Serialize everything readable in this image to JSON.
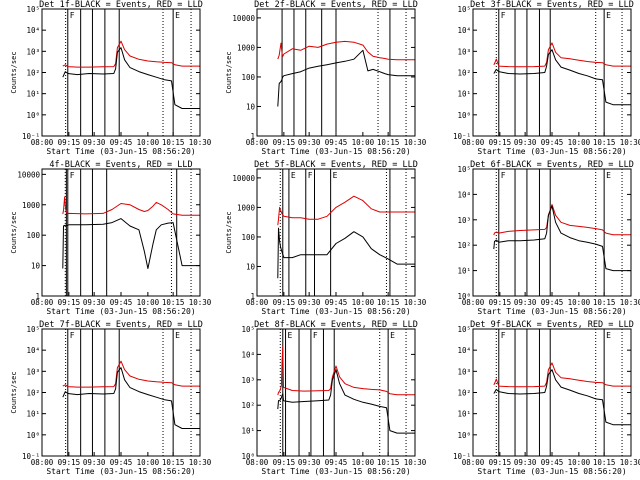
{
  "colors": {
    "events": "#000000",
    "lld": "#dd0000",
    "background": "#ffffff"
  },
  "time_axis": {
    "tick_labels": [
      "08:00",
      "09:15",
      "09:30",
      "09:45",
      "10:00",
      "10:15",
      "10:30"
    ],
    "xlabel": "Start Time (03-Jun-15 08:56:20)"
  },
  "chart_data": [
    {
      "type": "line",
      "title": "Det 1f-BLACK = Events, RED = LLD",
      "ylabel": "Counts/sec",
      "yscale": "log",
      "ylim": [
        0.1,
        100000
      ],
      "ytick_labels": [
        "10⁻¹",
        "10⁰",
        "10¹",
        "10²",
        "10³",
        "10⁴",
        "10⁵"
      ],
      "x": [
        "08:58",
        "09:05",
        "09:12",
        "09:20",
        "09:27",
        "09:35",
        "09:41",
        "09:42",
        "09:43",
        "09:45",
        "09:47",
        "09:50",
        "09:55",
        "10:00",
        "10:05",
        "10:10",
        "10:14",
        "10:16",
        "10:20",
        "10:30"
      ],
      "series": [
        {
          "color": "#dd0000",
          "values": [
            200,
            230,
            190,
            180,
            180,
            185,
            190,
            260,
            1500,
            3000,
            1200,
            600,
            420,
            350,
            320,
            300,
            290,
            230,
            200,
            200
          ]
        },
        {
          "color": "#000000",
          "values": [
            60,
            110,
            90,
            80,
            90,
            85,
            90,
            150,
            900,
            1500,
            400,
            170,
            110,
            80,
            60,
            45,
            40,
            3,
            2,
            2
          ]
        }
      ],
      "vlines_solid": [
        "09:12",
        "09:22",
        "09:29",
        "09:36",
        "09:44",
        "10:15"
      ],
      "vlines_dotted": [
        "09:06",
        "10:09",
        "10:25"
      ],
      "markers": [
        {
          "text": "F",
          "x": "09:12"
        },
        {
          "text": "E",
          "x": "10:15"
        }
      ]
    },
    {
      "type": "line",
      "title": "Det 2f-BLACK = Events, RED = LLD",
      "ylabel": "Counts/sec",
      "yscale": "log",
      "ylim": [
        1,
        20000
      ],
      "ytick_labels": [
        "1",
        "10",
        "100",
        "1000",
        "10000"
      ],
      "x": [
        "08:58",
        "09:02",
        "09:07",
        "09:10",
        "09:12",
        "09:15",
        "09:20",
        "09:25",
        "09:30",
        "09:35",
        "09:40",
        "09:45",
        "09:50",
        "09:55",
        "10:00",
        "10:03",
        "10:06",
        "10:10",
        "10:13",
        "10:15",
        "10:20",
        "10:30"
      ],
      "series": [
        {
          "color": "#dd0000",
          "values": [
            400,
            550,
            1400,
            600,
            500,
            600,
            900,
            800,
            1100,
            1000,
            1300,
            1500,
            1600,
            1500,
            1200,
            700,
            500,
            450,
            420,
            400,
            380,
            380
          ]
        },
        {
          "color": "#000000",
          "values": [
            10,
            60,
            70,
            85,
            100,
            110,
            130,
            150,
            200,
            230,
            260,
            300,
            340,
            400,
            800,
            160,
            180,
            150,
            130,
            120,
            110,
            110
          ]
        }
      ],
      "vlines_solid": [
        "09:10",
        "09:21",
        "09:28",
        "09:37",
        "09:45",
        "10:16"
      ],
      "vlines_dotted": [
        "10:09",
        "10:25"
      ],
      "markers": []
    },
    {
      "type": "line",
      "title": "Det 3f-BLACK = Events, RED = LLD",
      "ylabel": "",
      "yscale": "log",
      "ylim": [
        0.1,
        100000
      ],
      "ytick_labels": [
        "10⁻¹",
        "10⁰",
        "10¹",
        "10²",
        "10³",
        "10⁴",
        "10⁵"
      ],
      "x": [
        "08:58",
        "09:00",
        "09:05",
        "09:12",
        "09:20",
        "09:27",
        "09:35",
        "09:41",
        "09:42",
        "09:43",
        "09:45",
        "09:47",
        "09:50",
        "09:55",
        "10:00",
        "10:05",
        "10:10",
        "10:14",
        "10:16",
        "10:20",
        "10:30"
      ],
      "series": [
        {
          "color": "#dd0000",
          "values": [
            230,
            260,
            430,
            200,
            190,
            185,
            190,
            200,
            300,
            1200,
            2500,
            900,
            500,
            450,
            380,
            330,
            300,
            290,
            230,
            200,
            200
          ]
        },
        {
          "color": "#000000",
          "values": [
            90,
            100,
            140,
            110,
            90,
            85,
            90,
            100,
            200,
            700,
            1200,
            400,
            180,
            130,
            90,
            70,
            50,
            45,
            4,
            3,
            3
          ]
        }
      ],
      "vlines_solid": [
        "09:12",
        "09:24",
        "09:31",
        "09:38",
        "09:44",
        "10:15"
      ],
      "vlines_dotted": [
        "09:05",
        "10:10",
        "10:25"
      ],
      "markers": [
        {
          "text": "F",
          "x": "09:12"
        },
        {
          "text": "E",
          "x": "10:15"
        }
      ]
    },
    {
      "type": "line",
      "title": "4f-BLACK = Events, RED = LLD",
      "ylabel": "Counts/sec",
      "yscale": "log",
      "ylim": [
        1,
        15000
      ],
      "ytick_labels": [
        "1",
        "10",
        "100",
        "1000",
        "10000"
      ],
      "x": [
        "08:58",
        "09:00",
        "09:03",
        "09:06",
        "09:10",
        "09:15",
        "09:25",
        "09:35",
        "09:40",
        "09:45",
        "09:50",
        "09:55",
        "09:58",
        "10:00",
        "10:03",
        "10:05",
        "10:08",
        "10:12",
        "10:15",
        "10:20",
        "10:30"
      ],
      "series": [
        {
          "color": "#dd0000",
          "values": [
            500,
            650,
            1800,
            700,
            500,
            520,
            500,
            520,
            700,
            1100,
            1000,
            700,
            600,
            650,
            900,
            1200,
            1000,
            700,
            500,
            450,
            450
          ]
        },
        {
          "color": "#000000",
          "values": [
            8,
            200,
            210,
            210,
            210,
            220,
            220,
            230,
            260,
            350,
            200,
            150,
            30,
            8,
            50,
            150,
            220,
            250,
            260,
            10,
            10
          ]
        }
      ],
      "vlines_solid": [
        "09:08",
        "09:12",
        "09:22",
        "09:29",
        "09:37",
        "10:17"
      ],
      "vlines_dotted": [
        "09:05",
        "10:14",
        "10:25"
      ],
      "markers": [
        {
          "text": "F",
          "x": "09:12"
        }
      ]
    },
    {
      "type": "line",
      "title": "Det 5f-BLACK = Events, RED = LLD",
      "ylabel": "Counts/sec",
      "yscale": "log",
      "ylim": [
        1,
        20000
      ],
      "ytick_labels": [
        "1",
        "10",
        "100",
        "1000",
        "10000"
      ],
      "x": [
        "08:58",
        "09:00",
        "09:03",
        "09:06",
        "09:10",
        "09:15",
        "09:20",
        "09:25",
        "09:30",
        "09:35",
        "09:40",
        "09:45",
        "09:50",
        "09:55",
        "10:00",
        "10:05",
        "10:10",
        "10:15",
        "10:20",
        "10:30"
      ],
      "series": [
        {
          "color": "#dd0000",
          "values": [
            250,
            400,
            1000,
            800,
            600,
            500,
            450,
            450,
            400,
            400,
            500,
            1000,
            1500,
            2400,
            1700,
            900,
            700,
            700,
            700,
            700
          ]
        },
        {
          "color": "#000000",
          "values": [
            4,
            200,
            70,
            45,
            30,
            20,
            20,
            25,
            25,
            25,
            25,
            60,
            90,
            150,
            100,
            40,
            25,
            18,
            12,
            12
          ]
        }
      ],
      "vlines_solid": [
        "09:12",
        "09:18",
        "09:28",
        "09:33",
        "09:42",
        "10:16"
      ],
      "vlines_dotted": [
        "09:05",
        "10:14",
        "10:25"
      ],
      "markers": [
        {
          "text": "E",
          "x": "09:18"
        },
        {
          "text": "F",
          "x": "09:28"
        },
        {
          "text": "E",
          "x": "09:42"
        }
      ]
    },
    {
      "type": "line",
      "title": "Det 6f-BLACK = Events, RED = LLD",
      "ylabel": "",
      "yscale": "log",
      "ylim": [
        1,
        100000
      ],
      "ytick_labels": [
        "10⁰",
        "10¹",
        "10²",
        "10³",
        "10⁴",
        "10⁵"
      ],
      "x": [
        "08:58",
        "09:00",
        "09:05",
        "09:12",
        "09:20",
        "09:27",
        "09:35",
        "09:41",
        "09:42",
        "09:43",
        "09:45",
        "09:47",
        "09:50",
        "09:55",
        "10:00",
        "10:05",
        "10:10",
        "10:14",
        "10:16",
        "10:20",
        "10:30"
      ],
      "series": [
        {
          "color": "#dd0000",
          "values": [
            250,
            300,
            330,
            300,
            350,
            380,
            400,
            420,
            500,
            1500,
            4000,
            1500,
            800,
            600,
            550,
            500,
            450,
            400,
            300,
            260,
            260
          ]
        },
        {
          "color": "#000000",
          "values": [
            70,
            140,
            160,
            130,
            150,
            150,
            160,
            180,
            300,
            1500,
            3500,
            800,
            300,
            200,
            150,
            130,
            110,
            90,
            12,
            10,
            10
          ]
        }
      ],
      "vlines_solid": [
        "09:12",
        "09:24",
        "09:31",
        "09:38",
        "09:44",
        "10:15"
      ],
      "vlines_dotted": [
        "09:05",
        "10:10",
        "10:25"
      ],
      "markers": [
        {
          "text": "F",
          "x": "09:12"
        },
        {
          "text": "E",
          "x": "10:15"
        }
      ]
    },
    {
      "type": "line",
      "title": "Det 7f-BLACK = Events, RED = LLD",
      "ylabel": "Counts/sec",
      "yscale": "log",
      "ylim": [
        0.1,
        100000
      ],
      "ytick_labels": [
        "10⁻¹",
        "10⁰",
        "10¹",
        "10²",
        "10³",
        "10⁴",
        "10⁵"
      ],
      "x": [
        "08:58",
        "09:05",
        "09:12",
        "09:20",
        "09:27",
        "09:35",
        "09:41",
        "09:42",
        "09:43",
        "09:45",
        "09:47",
        "09:50",
        "09:55",
        "10:00",
        "10:05",
        "10:10",
        "10:14",
        "10:16",
        "10:20",
        "10:30"
      ],
      "series": [
        {
          "color": "#dd0000",
          "values": [
            200,
            230,
            190,
            180,
            180,
            185,
            190,
            260,
            1500,
            3000,
            1200,
            600,
            420,
            350,
            320,
            300,
            290,
            230,
            200,
            200
          ]
        },
        {
          "color": "#000000",
          "values": [
            60,
            110,
            90,
            80,
            90,
            85,
            90,
            150,
            900,
            1500,
            400,
            170,
            110,
            80,
            60,
            45,
            40,
            3,
            2,
            2
          ]
        }
      ],
      "vlines_solid": [
        "09:12",
        "09:22",
        "09:29",
        "09:36",
        "09:44",
        "10:15"
      ],
      "vlines_dotted": [
        "09:06",
        "10:09",
        "10:25"
      ],
      "markers": [
        {
          "text": "F",
          "x": "09:12"
        },
        {
          "text": "E",
          "x": "10:15"
        }
      ]
    },
    {
      "type": "line",
      "title": "Det 8f-BLACK = Events, RED = LLD",
      "ylabel": "",
      "yscale": "log",
      "ylim": [
        1,
        100000
      ],
      "ytick_labels": [
        "10⁰",
        "10¹",
        "10²",
        "10³",
        "10⁴",
        "10⁵"
      ],
      "x": [
        "08:58",
        "09:00",
        "09:05",
        "09:08",
        "09:10",
        "09:12",
        "09:14",
        "09:20",
        "09:27",
        "09:35",
        "09:41",
        "09:42",
        "09:43",
        "09:45",
        "09:47",
        "09:50",
        "09:55",
        "10:00",
        "10:05",
        "10:10",
        "10:14",
        "10:16",
        "10:20",
        "10:30"
      ],
      "series": [
        {
          "color": "#dd0000",
          "values": [
            250,
            320,
            400,
            600,
            6000,
            20000,
            500,
            380,
            360,
            370,
            380,
            450,
            1300,
            3500,
            1300,
            700,
            500,
            450,
            420,
            400,
            350,
            280,
            260,
            260
          ]
        },
        {
          "color": "#000000",
          "values": [
            70,
            150,
            160,
            200,
            250,
            280,
            150,
            130,
            140,
            150,
            160,
            250,
            1000,
            2500,
            700,
            250,
            170,
            130,
            110,
            90,
            80,
            10,
            8,
            8
          ]
        }
      ],
      "vlines_solid": [
        "09:12",
        "09:16",
        "09:24",
        "09:31",
        "09:38",
        "09:44",
        "10:15"
      ],
      "vlines_dotted": [
        "09:05",
        "10:10",
        "10:25"
      ],
      "markers": [
        {
          "text": "E",
          "x": "09:16"
        },
        {
          "text": "F",
          "x": "09:31"
        },
        {
          "text": "E",
          "x": "10:15"
        }
      ]
    },
    {
      "type": "line",
      "title": "Det 9f-BLACK = Events, RED = LLD",
      "ylabel": "",
      "yscale": "log",
      "ylim": [
        0.1,
        100000
      ],
      "ytick_labels": [
        "10⁻¹",
        "10⁰",
        "10¹",
        "10²",
        "10³",
        "10⁴",
        "10⁵"
      ],
      "x": [
        "08:58",
        "09:00",
        "09:05",
        "09:12",
        "09:20",
        "09:27",
        "09:35",
        "09:41",
        "09:42",
        "09:43",
        "09:45",
        "09:47",
        "09:50",
        "09:55",
        "10:00",
        "10:05",
        "10:10",
        "10:14",
        "10:16",
        "10:20",
        "10:30"
      ],
      "series": [
        {
          "color": "#dd0000",
          "values": [
            230,
            260,
            430,
            200,
            190,
            185,
            190,
            200,
            300,
            1200,
            2500,
            900,
            500,
            450,
            380,
            330,
            300,
            290,
            230,
            200,
            200
          ]
        },
        {
          "color": "#000000",
          "values": [
            90,
            100,
            140,
            110,
            90,
            85,
            90,
            100,
            200,
            700,
            1200,
            400,
            180,
            130,
            90,
            70,
            50,
            45,
            4,
            3,
            3
          ]
        }
      ],
      "vlines_solid": [
        "09:12",
        "09:24",
        "09:31",
        "09:38",
        "09:44",
        "10:15"
      ],
      "vlines_dotted": [
        "09:05",
        "10:10",
        "10:25"
      ],
      "markers": [
        {
          "text": "F",
          "x": "09:12"
        },
        {
          "text": "E",
          "x": "10:15"
        }
      ]
    }
  ]
}
